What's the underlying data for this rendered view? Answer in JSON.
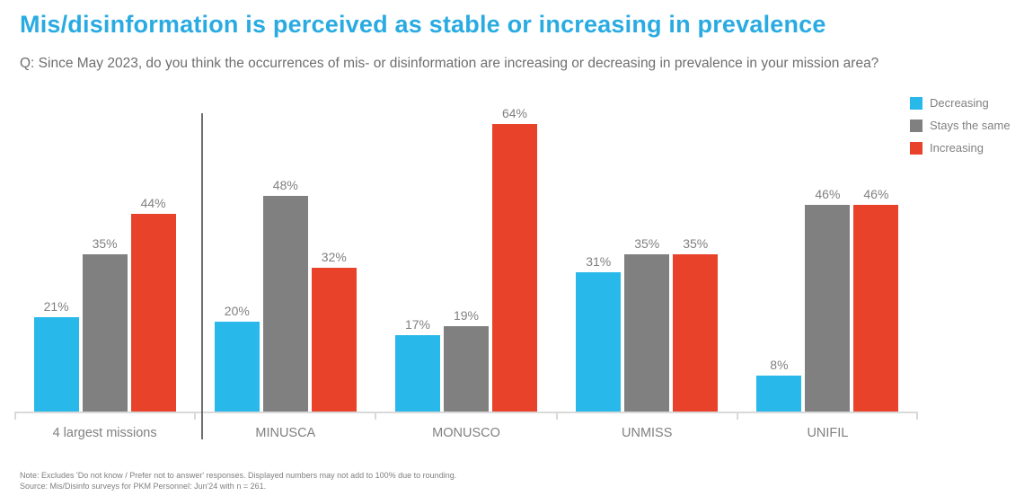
{
  "slide": {
    "title": "Mis/disinformation is perceived as stable or increasing in prevalence",
    "question": "Q: Since May 2023, do you think the occurrences of mis- or disinformation are increasing or decreasing in prevalence in your mission area?",
    "note": "Note: Excludes 'Do not know / Prefer not to answer' responses. Displayed numbers may not add to 100% due to rounding.",
    "source": "Source: Mis/Disinfo surveys for PKM Personnel: Jun'24 with n = 261."
  },
  "colors": {
    "title_accent": "#29ABE2",
    "decreasing": "#29B8EA",
    "stays_the_same": "#808080",
    "increasing": "#E8432A",
    "text_gray": "#808080",
    "axis": "#D9D9D9",
    "divider": "#6D6E71"
  },
  "chart_data": {
    "type": "bar",
    "title": "Mis/disinformation is perceived as stable or increasing in prevalence",
    "categories": [
      "4 largest missions",
      "MINUSCA",
      "MONUSCO",
      "UNMISS",
      "UNIFIL"
    ],
    "series": [
      {
        "name": "Decreasing",
        "color": "#29B8EA",
        "values": [
          21,
          20,
          17,
          31,
          8
        ]
      },
      {
        "name": "Stays the same",
        "color": "#808080",
        "values": [
          35,
          48,
          19,
          35,
          46
        ]
      },
      {
        "name": "Increasing",
        "color": "#E8432A",
        "values": [
          44,
          32,
          64,
          35,
          46
        ]
      }
    ],
    "value_suffix": "%",
    "xlabel": "",
    "ylabel": "",
    "ylim": [
      0,
      68
    ],
    "grid": false,
    "legend_position": "top-right",
    "divider_after_category": "4 largest missions"
  }
}
